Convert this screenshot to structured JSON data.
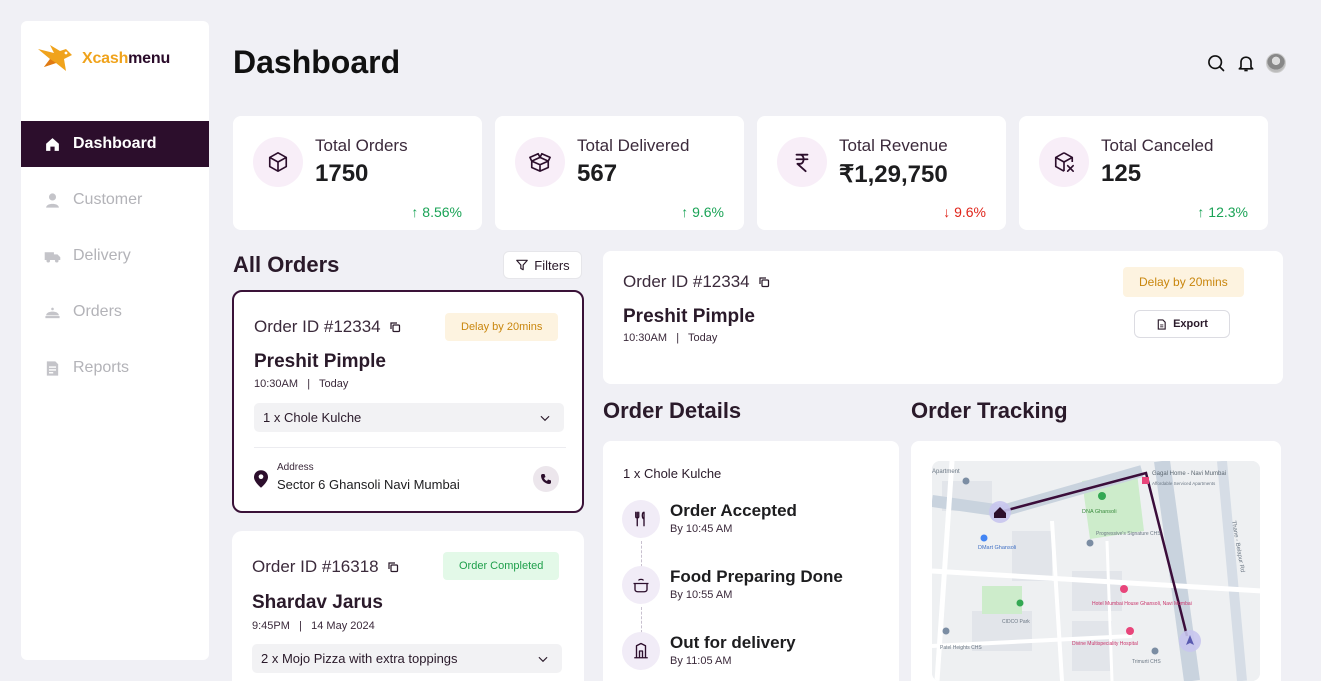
{
  "brand": {
    "x": "X",
    "cash": "cash",
    "menu": "menu"
  },
  "nav": [
    {
      "label": "Dashboard",
      "icon": "home-icon",
      "active": true
    },
    {
      "label": "Customer",
      "icon": "user-icon"
    },
    {
      "label": "Delivery",
      "icon": "truck-icon"
    },
    {
      "label": "Orders",
      "icon": "cloche-icon"
    },
    {
      "label": "Reports",
      "icon": "report-icon"
    }
  ],
  "header": {
    "title": "Dashboard"
  },
  "stats": [
    {
      "label": "Total Orders",
      "value": "1750",
      "change": "8.56%",
      "trend": "up",
      "icon": "box-icon"
    },
    {
      "label": "Total Delivered",
      "value": "567",
      "change": "9.6%",
      "trend": "up",
      "icon": "open-box-icon"
    },
    {
      "label": "Total Revenue",
      "value": "₹1,29,750",
      "change": "9.6%",
      "trend": "down",
      "icon": "rupee-icon"
    },
    {
      "label": "Total Canceled",
      "value": "125",
      "change": "12.3%",
      "trend": "up",
      "icon": "box-cancel-icon"
    }
  ],
  "orders_section": {
    "title": "All Orders",
    "filters_label": "Filters"
  },
  "orders": [
    {
      "id": "Order ID #12334",
      "badge": "Delay by 20mins",
      "name": "Preshit Pimple",
      "time": "10:30AM",
      "day": "Today",
      "item": "1 x Chole Kulche",
      "address_label": "Address",
      "address": "Sector 6 Ghansoli Navi Mumbai"
    },
    {
      "id": "Order ID #16318",
      "badge": "Order Completed",
      "name": "Shardav Jarus",
      "time": "9:45PM",
      "day": "14 May 2024",
      "item": "2 x Mojo Pizza with extra toppings"
    }
  ],
  "detail": {
    "id": "Order ID #12334",
    "badge": "Delay by 20mins",
    "name": "Preshit Pimple",
    "time": "10:30AM",
    "day": "Today",
    "export_label": "Export"
  },
  "order_details": {
    "title": "Order Details",
    "item": "1 x Chole Kulche",
    "steps": [
      {
        "title": "Order Accepted",
        "sub": "By 10:45 AM",
        "icon": "fork-knife-icon"
      },
      {
        "title": "Food Preparing Done",
        "sub": "By 10:55 AM",
        "icon": "pot-icon"
      },
      {
        "title": "Out for delivery",
        "sub": "By 11:05 AM",
        "icon": "delivery-door-icon"
      }
    ]
  },
  "tracking": {
    "title": "Order Tracking",
    "map_labels": [
      "Apartment",
      "Gagal Home - Navi Mumbai",
      "Affordable Serviced Apartments",
      "DNA Ghansoli",
      "Progressive's Signature CHS",
      "DMart Ghansoli",
      "Hotel Mumbai House Ghansoli, Navi Mumbai",
      "CIDCO Park",
      "Patel Heights CHS",
      "Divine Multispeciality Hospital",
      "Trimurti CHS",
      "Thane - Belapur Rd"
    ]
  },
  "colors": {
    "accent": "#2c0e2c",
    "up": "#1aa356",
    "down": "#e0251b",
    "delay_bg": "#fdf3e0",
    "done_bg": "#e3f9e8"
  }
}
